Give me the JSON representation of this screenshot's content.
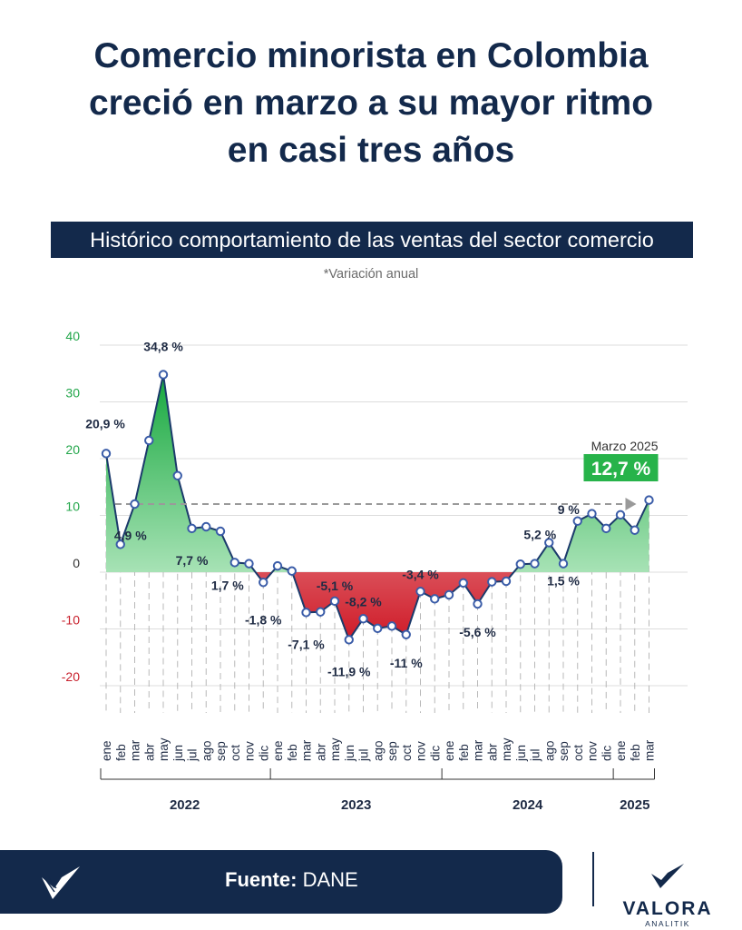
{
  "title_lines": [
    "Comercio minorista en Colombia",
    "creció en marzo a su mayor ritmo",
    "en casi tres años"
  ],
  "subtitle": "Histórico comportamiento de las ventas del sector comercio",
  "note": "*Variación anual",
  "footer": {
    "source_label": "Fuente:",
    "source_value": "DANE"
  },
  "logo": {
    "name": "VALORA",
    "sub": "ANALITIK",
    "icon": "valora-check-icon"
  },
  "colors": {
    "navy": "#13294b",
    "positive": "#22b14c",
    "negative": "#d0202e",
    "marker": "#3a5ca8"
  },
  "chart_data": {
    "type": "area",
    "title": "Histórico comportamiento de las ventas del sector comercio",
    "subtitle": "*Variación anual",
    "ylim": [
      -20,
      40
    ],
    "yticks": [
      40,
      30,
      20,
      10,
      0,
      -10,
      -20
    ],
    "categories": [
      "ene",
      "feb",
      "mar",
      "abr",
      "may",
      "jun",
      "jul",
      "ago",
      "sep",
      "oct",
      "nov",
      "dic",
      "ene",
      "feb",
      "mar",
      "abr",
      "may",
      "jun",
      "jul",
      "ago",
      "sep",
      "oct",
      "nov",
      "dic",
      "ene",
      "feb",
      "mar",
      "abr",
      "may",
      "jun",
      "jul",
      "ago",
      "sep",
      "oct",
      "nov",
      "dic",
      "ene",
      "feb",
      "mar"
    ],
    "values": [
      20.9,
      4.9,
      12.0,
      23.2,
      34.8,
      17.0,
      7.7,
      8.0,
      7.2,
      1.7,
      1.5,
      -1.8,
      1.1,
      0.2,
      -7.1,
      -7.0,
      -5.1,
      -11.9,
      -8.2,
      -9.9,
      -9.5,
      -11.0,
      -3.4,
      -4.7,
      -4.0,
      -1.9,
      -5.6,
      -1.7,
      -1.6,
      1.4,
      1.5,
      5.2,
      1.5,
      9.0,
      10.3,
      7.7,
      10.1,
      7.4,
      12.7
    ],
    "groups": [
      {
        "label": "2022",
        "start": 0,
        "end": 11
      },
      {
        "label": "2023",
        "start": 12,
        "end": 23
      },
      {
        "label": "2024",
        "start": 24,
        "end": 35
      },
      {
        "label": "2025",
        "start": 36,
        "end": 38
      }
    ],
    "data_labels": [
      {
        "index": 0,
        "text": "20,9 %"
      },
      {
        "index": 1,
        "text": "4,9 %"
      },
      {
        "index": 4,
        "text": "34,8 %"
      },
      {
        "index": 6,
        "text": "7,7 %"
      },
      {
        "index": 9,
        "text": "1,7 %"
      },
      {
        "index": 11,
        "text": "-1,8 %"
      },
      {
        "index": 14,
        "text": "-7,1 %"
      },
      {
        "index": 16,
        "text": "-5,1 %"
      },
      {
        "index": 17,
        "text": "-11,9 %"
      },
      {
        "index": 18,
        "text": "-8,2 %"
      },
      {
        "index": 21,
        "text": "-11 %"
      },
      {
        "index": 22,
        "text": "-3,4 %"
      },
      {
        "index": 26,
        "text": "-5,6 %"
      },
      {
        "index": 31,
        "text": "5,2 %"
      },
      {
        "index": 32,
        "text": "1,5 %"
      },
      {
        "index": 33,
        "text": "9 %"
      }
    ],
    "highlight": {
      "index": 38,
      "label": "Marzo 2025",
      "value_text": "12,7 %"
    },
    "reference_arrow": {
      "from_index": 0,
      "to_index": 38,
      "value": 12.0,
      "style": "dashed"
    }
  }
}
